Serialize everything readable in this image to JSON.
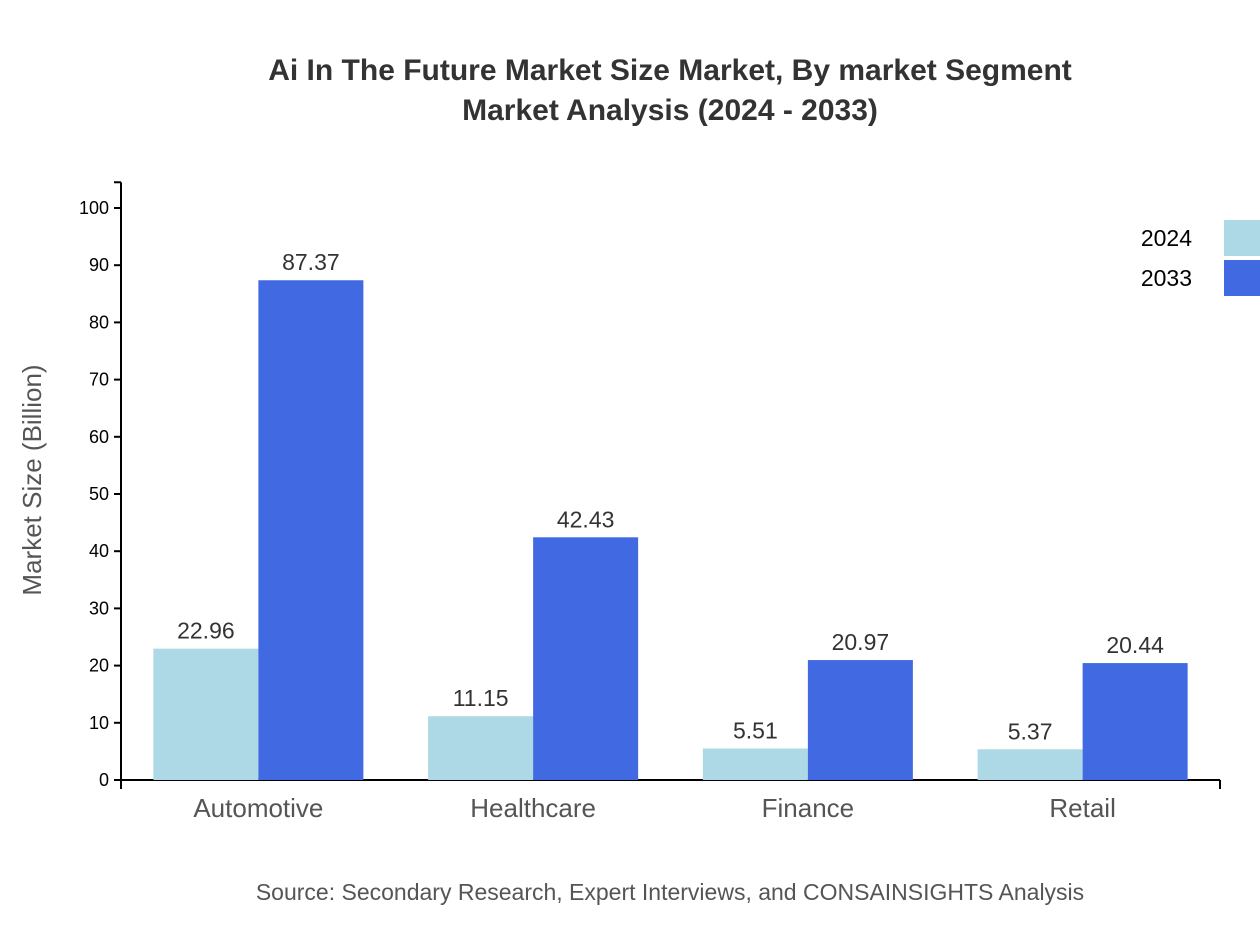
{
  "chart_data": {
    "type": "bar",
    "title_lines": [
      "Ai In The Future Market Size Market, By market Segment",
      "Market Analysis (2024 - 2033)"
    ],
    "xlabel": "",
    "ylabel": "Market Size (Billion)",
    "ylim": [
      0,
      104.5
    ],
    "yticks": [
      0,
      10,
      20,
      30,
      40,
      50,
      60,
      70,
      80,
      90,
      100
    ],
    "categories": [
      "Automotive",
      "Healthcare",
      "Finance",
      "Retail"
    ],
    "series": [
      {
        "name": "2024",
        "color": "#add8e6",
        "values": [
          22.96,
          11.15,
          5.51,
          5.37
        ]
      },
      {
        "name": "2033",
        "color": "#4169e1",
        "values": [
          87.37,
          42.43,
          20.97,
          20.44
        ]
      }
    ],
    "data_labels": true,
    "grid": false,
    "legend_position": "top-right",
    "source": "Source: Secondary Research, Expert Interviews, and CONSAINSIGHTS Analysis"
  }
}
